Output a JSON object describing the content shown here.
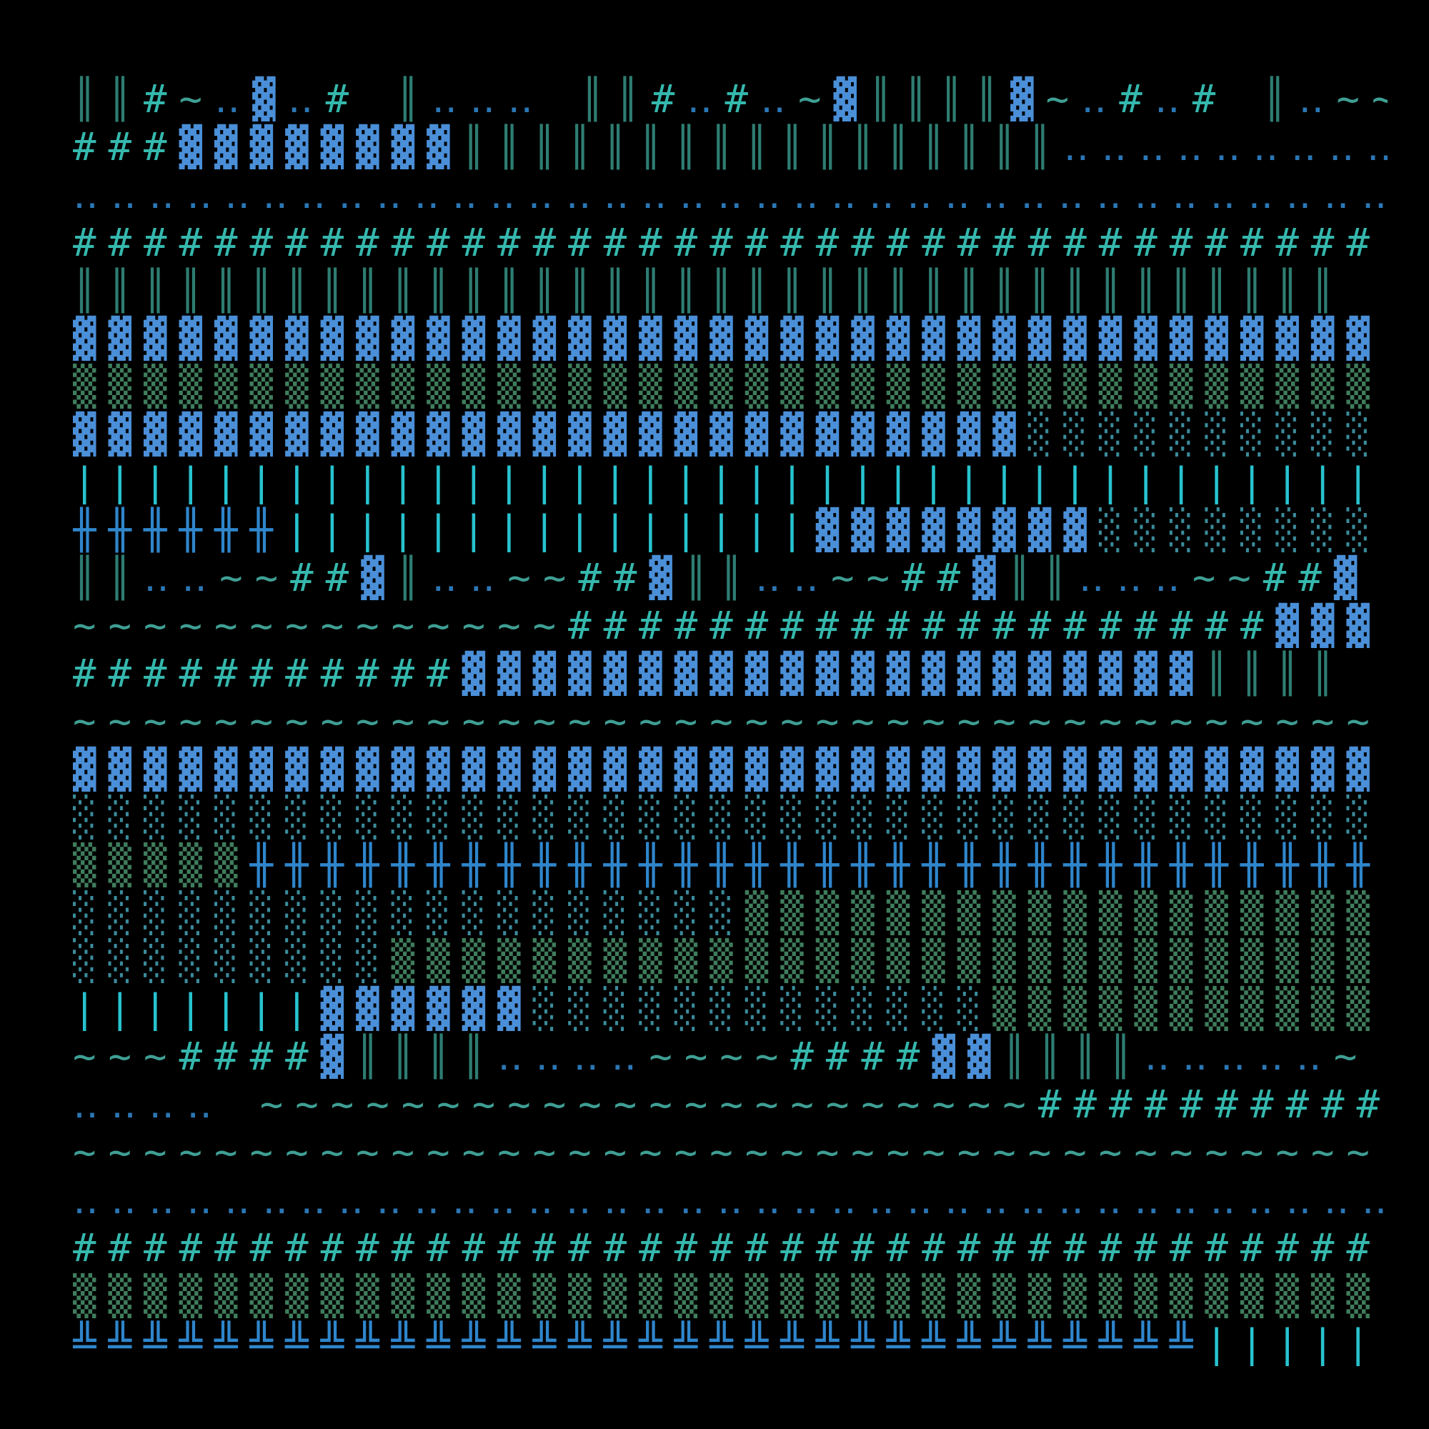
{
  "rows": [
    [
      "║",
      "║",
      "#",
      "~",
      "‥",
      "▓",
      "‥",
      "#",
      " ",
      "║",
      "‥‥‥",
      " ",
      "║",
      "║",
      "#",
      "‥",
      "#",
      "‥",
      "~",
      "▓",
      "║║║║",
      "▓",
      "~",
      "‥",
      "#",
      "‥",
      "#",
      " ",
      "║",
      "‥",
      "~~"
    ],
    [
      "###",
      "▓▓▓▓▓▓▓▓",
      "║║║║║║║║║║║║║║║║║",
      "‥‥‥‥‥‥‥‥‥"
    ],
    [
      "‥‥‥‥‥‥‥‥‥‥‥‥‥‥‥‥‥‥‥‥‥‥‥‥‥‥‥‥‥‥‥‥‥‥‥‥‥"
    ],
    [
      "#####################################"
    ],
    [
      "║║║║║║║║║║║║║║║║║║║║║║║║║║║║║║║║║║║║"
    ],
    [
      "▓▓▓▓▓▓▓▓▓▓▓▓▓▓▓▓▓▓▓▓▓▓▓▓▓▓▓▓▓▓▓▓▓▓▓▓▓"
    ],
    [
      "▒▒▒▒▒▒▒▒▒▒▒▒▒▒▒▒▒▒▒▒▒▒▒▒▒▒▒▒▒▒▒▒▒▒▒▒▒"
    ],
    [
      "▓▓▓▓▓▓▓▓▓▓▓▓▓▓▓▓▓▓▓▓▓▓▓▓▓▓▓",
      "░░░░░░░░░░"
    ],
    [
      "|||||||||||||||||||||||||||||||||||||"
    ],
    [
      "╫╫╫╫╫╫",
      "|||||||||||||||",
      "▓▓▓▓▓▓▓▓",
      "░░░░░░░░"
    ],
    [
      "║║",
      "‥‥",
      "~~",
      "##",
      "▓",
      "║",
      "‥‥",
      "~~",
      "##",
      "▓",
      "║║",
      "‥‥",
      "~~",
      "##",
      "▓",
      "║║",
      "‥‥‥",
      "~~",
      "##",
      "▓"
    ],
    [
      "~~~~~~~~~~~~~~",
      "####################",
      "▓▓▓"
    ],
    [
      "###########",
      "▓▓▓▓▓▓▓▓▓▓▓▓▓▓▓▓▓▓▓▓▓",
      "║║║║"
    ],
    [
      "~~~~~~~~~~~~~~~~~~~~~~~~~~~~~~~~~~~~~"
    ],
    [
      "▓▓▓▓▓▓▓▓▓▓▓▓▓▓▓▓▓▓▓▓▓▓▓▓▓▓▓▓▓▓▓▓▓▓▓▓▓"
    ],
    [
      "░░░░░░░░░░░░░░░░░░░░░░░░░░░░░░░░░░░░░"
    ],
    [
      "▒▒▒▒▒",
      "╫╫╫╫╫╫╫╫╫╫╫╫╫╫╫╫╫╫╫╫╫╫╫╫╫╫╫╫╫╫╫╫"
    ],
    [
      "░░░░░░░░░░░░░░░░░░░",
      "▒▒▒▒▒▒▒▒▒▒▒▒▒▒▒▒▒▒"
    ],
    [
      "░░░░░░░░░",
      "▒▒▒▒▒▒▒▒▒▒▒▒▒▒▒▒▒▒▒▒▒▒▒▒▒▒▒▒"
    ],
    [
      "|||||||",
      "▓▓▓▓▓▓",
      "░░░░░░░░░░░░░",
      "▒▒▒▒▒▒▒▒▒▒▒"
    ],
    [
      "~~~",
      "####",
      "▓",
      "║║║║",
      "‥‥‥‥",
      "~~~~",
      "####",
      "▓▓",
      "║║║║",
      "‥‥‥‥‥",
      "~"
    ],
    [
      "‥‥‥‥",
      " ",
      "~~~~~~~~~~~~~~~~~~~~~~",
      "##########"
    ],
    [
      "~~~~~~~~~~~~~~~~~~~~~~~~~~~~~~~~~~~~~"
    ],
    [
      "‥‥‥‥‥‥‥‥‥‥‥‥‥‥‥‥‥‥‥‥‥‥‥‥‥‥‥‥‥‥‥‥‥‥‥‥‥"
    ],
    [
      "#####################################"
    ],
    [
      "▒▒▒▒▒▒▒▒▒▒▒▒▒▒▒▒▒▒▒▒▒▒▒▒▒▒▒▒▒▒▒▒▒▒▒▒▒"
    ],
    [
      "╩╩╩╩╩╩╩╩╩╩╩╩╩╩╩╩╩╩╩╩╩╩╩╩╩╩╩╩╩╩╩╩",
      "|||||"
    ]
  ],
  "palette": {
    "#": "#35b8ad",
    "║": "#2e7d72",
    "▓": "#4a8fd8",
    "▒": "#3f7d5c",
    "░": "#3a8c9c",
    "╫": "#2f86cc",
    "|": "#27c3cf",
    "~": "#3f9f94",
    "‥": "#2b77b5",
    "╩": "#2f86cc",
    " ": "#000000"
  }
}
